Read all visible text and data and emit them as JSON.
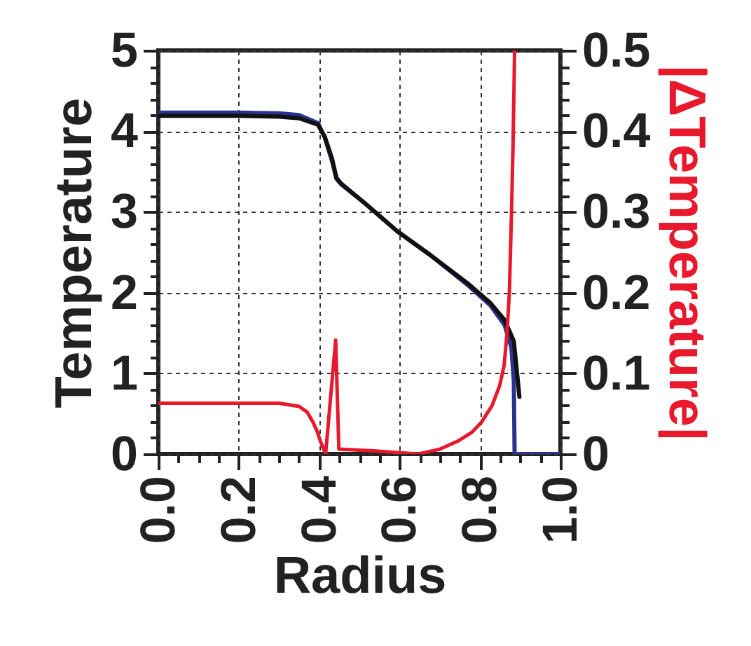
{
  "chart_data": {
    "type": "line",
    "xlabel": "Radius",
    "ylabel": "Temperature",
    "y2label": "|ΔTemperature|",
    "grid": true,
    "line_style": "solid",
    "marker": "none",
    "xlim": [
      0,
      1
    ],
    "ylim": [
      0,
      5
    ],
    "y2lim": [
      0,
      0.5
    ],
    "xticks": [
      {
        "value": 0,
        "label": "0.0"
      },
      {
        "value": 0.05,
        "label": null
      },
      {
        "value": 0.1,
        "label": null
      },
      {
        "value": 0.15,
        "label": null
      },
      {
        "value": 0.2,
        "label": "0.2"
      },
      {
        "value": 0.25,
        "label": null
      },
      {
        "value": 0.3,
        "label": null
      },
      {
        "value": 0.35,
        "label": null
      },
      {
        "value": 0.4,
        "label": "0.4"
      },
      {
        "value": 0.45,
        "label": null
      },
      {
        "value": 0.5,
        "label": null
      },
      {
        "value": 0.55,
        "label": null
      },
      {
        "value": 0.6,
        "label": "0.6"
      },
      {
        "value": 0.65,
        "label": null
      },
      {
        "value": 0.7,
        "label": null
      },
      {
        "value": 0.75,
        "label": null
      },
      {
        "value": 0.8,
        "label": "0.8"
      },
      {
        "value": 0.85,
        "label": null
      },
      {
        "value": 0.9,
        "label": null
      },
      {
        "value": 0.95,
        "label": null
      },
      {
        "value": 1,
        "label": "1.0"
      }
    ],
    "yticks": [
      0,
      {
        "value": 0.2,
        "label": null
      },
      {
        "value": 0.4,
        "label": null
      },
      {
        "value": 0.6,
        "label": null
      },
      {
        "value": 0.8,
        "label": null
      },
      1,
      {
        "value": 1.2,
        "label": null
      },
      {
        "value": 1.4,
        "label": null
      },
      {
        "value": 1.6,
        "label": null
      },
      {
        "value": 1.8,
        "label": null
      },
      2,
      {
        "value": 2.2,
        "label": null
      },
      {
        "value": 2.4,
        "label": null
      },
      {
        "value": 2.6,
        "label": null
      },
      {
        "value": 2.8,
        "label": null
      },
      3,
      {
        "value": 3.2,
        "label": null
      },
      {
        "value": 3.4,
        "label": null
      },
      {
        "value": 3.6,
        "label": null
      },
      {
        "value": 3.8,
        "label": null
      },
      4,
      {
        "value": 4.2,
        "label": null
      },
      {
        "value": 4.4,
        "label": null
      },
      {
        "value": 4.6,
        "label": null
      },
      {
        "value": 4.8,
        "label": null
      },
      5
    ],
    "y2ticks": [
      0,
      {
        "value": 0.02,
        "label": null
      },
      {
        "value": 0.04,
        "label": null
      },
      {
        "value": 0.06,
        "label": null
      },
      {
        "value": 0.08,
        "label": null
      },
      0.1,
      {
        "value": 0.12,
        "label": null
      },
      {
        "value": 0.14,
        "label": null
      },
      {
        "value": 0.16,
        "label": null
      },
      {
        "value": 0.18,
        "label": null
      },
      0.2,
      {
        "value": 0.22,
        "label": null
      },
      {
        "value": 0.24,
        "label": null
      },
      {
        "value": 0.26,
        "label": null
      },
      {
        "value": 0.28,
        "label": null
      },
      0.3,
      {
        "value": 0.32,
        "label": null
      },
      {
        "value": 0.34,
        "label": null
      },
      {
        "value": 0.36,
        "label": null
      },
      {
        "value": 0.38,
        "label": null
      },
      0.4,
      {
        "value": 0.42,
        "label": null
      },
      {
        "value": 0.44,
        "label": null
      },
      {
        "value": 0.46,
        "label": null
      },
      {
        "value": 0.48,
        "label": null
      },
      0.5
    ],
    "series": [
      {
        "color": "#2b3190",
        "x": [
          0,
          0.2,
          0.3,
          0.35,
          0.397,
          0.414,
          0.432,
          0.443,
          0.455,
          0.513,
          0.594,
          0.675,
          0.768,
          0.826,
          0.861,
          0.878,
          0.884,
          0.886,
          1
        ],
        "values": [
          4.23,
          4.23,
          4.22,
          4.2,
          4.1,
          3.92,
          3.63,
          3.41,
          3.34,
          3.11,
          2.76,
          2.47,
          2.1,
          1.84,
          1.6,
          1.32,
          0.91,
          0,
          0
        ]
      },
      {
        "color": "#111111",
        "x": [
          0,
          0.2,
          0.3,
          0.35,
          0.397,
          0.414,
          0.432,
          0.443,
          0.455,
          0.513,
          0.594,
          0.675,
          0.768,
          0.826,
          0.861,
          0.884,
          0.898
        ],
        "values": [
          4.19,
          4.19,
          4.18,
          4.16,
          4.08,
          3.93,
          3.66,
          3.42,
          3.35,
          3.11,
          2.76,
          2.47,
          2.12,
          1.87,
          1.66,
          1.4,
          0.71
        ]
      },
      {
        "color": "#e8192c",
        "axis": "y2",
        "x": [
          0,
          0.3,
          0.35,
          0.37,
          0.385,
          0.395,
          0.403,
          0.416,
          0.441,
          0.449,
          0.536,
          0.646,
          0.7,
          0.745,
          0.78,
          0.803,
          0.83,
          0.849,
          0.86,
          0.867,
          0.873,
          0.878,
          0.882,
          0.886
        ],
        "values": [
          0.063,
          0.063,
          0.059,
          0.052,
          0.039,
          0.028,
          0.016,
          0,
          0.141,
          0.006,
          0.004,
          0,
          0.006,
          0.016,
          0.027,
          0.039,
          0.06,
          0.085,
          0.11,
          0.149,
          0.2,
          0.294,
          0.38,
          0.5
        ]
      }
    ]
  }
}
